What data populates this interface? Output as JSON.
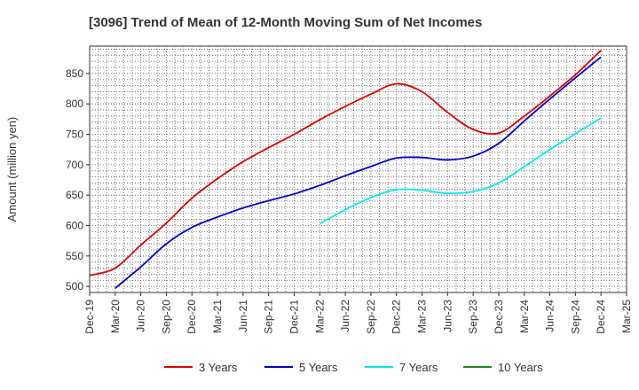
{
  "chart_data": {
    "type": "line",
    "title": "[3096]  Trend of Mean of 12-Month Moving Sum of Net Incomes",
    "ylabel": "Amount (million yen)",
    "xlabel": "",
    "ylim": [
      490,
      895
    ],
    "yticks": [
      500,
      550,
      600,
      650,
      700,
      750,
      800,
      850
    ],
    "x_tick_labels": [
      "Dec-19",
      "Mar-20",
      "Jun-20",
      "Sep-20",
      "Dec-20",
      "Mar-21",
      "Jun-21",
      "Sep-21",
      "Dec-21",
      "Mar-22",
      "Jun-22",
      "Sep-22",
      "Dec-22",
      "Mar-23",
      "Jun-23",
      "Sep-23",
      "Dec-23",
      "Mar-24",
      "Jun-24",
      "Sep-24",
      "Dec-24",
      "Mar-25"
    ],
    "grid": true,
    "legend_position": "bottom",
    "series": [
      {
        "name": "3 Years",
        "color": "#dd0000",
        "points": [
          [
            "Dec-19",
            518
          ],
          [
            "Mar-20",
            530
          ],
          [
            "Jun-20",
            568
          ],
          [
            "Sep-20",
            604
          ],
          [
            "Dec-20",
            645
          ],
          [
            "Mar-21",
            677
          ],
          [
            "Jun-21",
            705
          ],
          [
            "Sep-21",
            728
          ],
          [
            "Dec-21",
            750
          ],
          [
            "Mar-22",
            774
          ],
          [
            "Jun-22",
            796
          ],
          [
            "Sep-22",
            816
          ],
          [
            "Dec-22",
            833
          ],
          [
            "Mar-23",
            820
          ],
          [
            "Jun-23",
            786
          ],
          [
            "Sep-23",
            758
          ],
          [
            "Dec-23",
            752
          ],
          [
            "Mar-24",
            780
          ],
          [
            "Jun-24",
            813
          ],
          [
            "Sep-24",
            848
          ],
          [
            "Dec-24",
            888
          ]
        ]
      },
      {
        "name": "5 Years",
        "color": "#0000cc",
        "points": [
          [
            "Mar-20",
            497
          ],
          [
            "Jun-20",
            532
          ],
          [
            "Sep-20",
            570
          ],
          [
            "Dec-20",
            597
          ],
          [
            "Mar-21",
            614
          ],
          [
            "Jun-21",
            629
          ],
          [
            "Sep-21",
            641
          ],
          [
            "Dec-21",
            652
          ],
          [
            "Mar-22",
            666
          ],
          [
            "Jun-22",
            682
          ],
          [
            "Sep-22",
            697
          ],
          [
            "Dec-22",
            711
          ],
          [
            "Mar-23",
            712
          ],
          [
            "Jun-23",
            708
          ],
          [
            "Sep-23",
            714
          ],
          [
            "Dec-23",
            735
          ],
          [
            "Mar-24",
            772
          ],
          [
            "Jun-24",
            808
          ],
          [
            "Sep-24",
            843
          ],
          [
            "Dec-24",
            877
          ]
        ]
      },
      {
        "name": "7 Years",
        "color": "#00eeee",
        "points": [
          [
            "Mar-22",
            603
          ],
          [
            "Jun-22",
            626
          ],
          [
            "Sep-22",
            646
          ],
          [
            "Dec-22",
            659
          ],
          [
            "Mar-23",
            658
          ],
          [
            "Jun-23",
            653
          ],
          [
            "Sep-23",
            656
          ],
          [
            "Dec-23",
            670
          ],
          [
            "Mar-24",
            697
          ],
          [
            "Jun-24",
            725
          ],
          [
            "Sep-24",
            751
          ],
          [
            "Dec-24",
            777
          ]
        ]
      },
      {
        "name": "10 Years",
        "color": "#228822",
        "points": []
      }
    ]
  }
}
